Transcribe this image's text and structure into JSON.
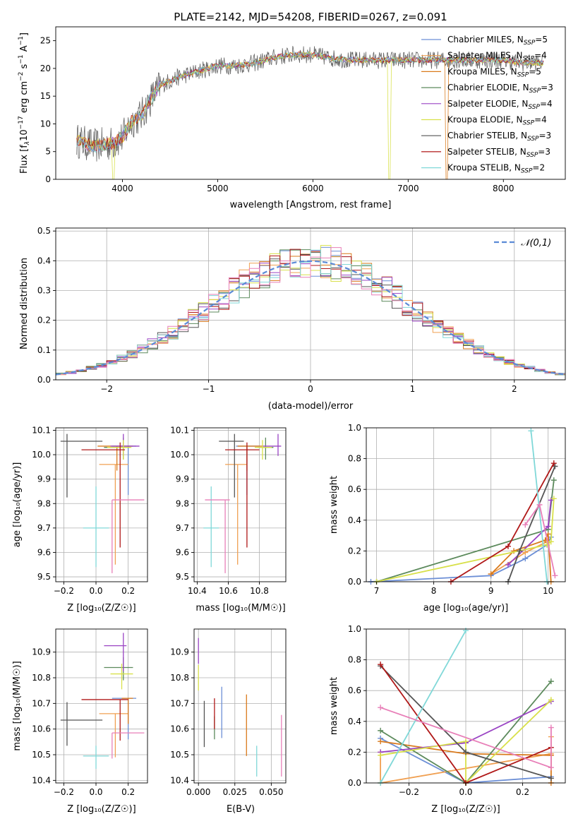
{
  "figure": {
    "title": "PLATE=2142, MJD=54208, FIBERID=0267, z=0.091"
  },
  "series": [
    {
      "key": "s0",
      "label": "Chabrier MILES, N",
      "sub": "SSP",
      "eq": "=5",
      "color": "#6c8fd6"
    },
    {
      "key": "s1",
      "label": "Salpeter MILES, N",
      "sub": "SSP",
      "eq": "=4",
      "color": "#f0a052"
    },
    {
      "key": "s2",
      "label": "Kroupa MILES, N",
      "sub": "SSP",
      "eq": "=5",
      "color": "#d97a1c"
    },
    {
      "key": "s3",
      "label": "Chabrier ELODIE, N",
      "sub": "SSP",
      "eq": "=3",
      "color": "#5c8a5c"
    },
    {
      "key": "s4",
      "label": "Salpeter ELODIE, N",
      "sub": "SSP",
      "eq": "=4",
      "color": "#9a44c4"
    },
    {
      "key": "s5",
      "label": "Kroupa ELODIE, N",
      "sub": "SSP",
      "eq": "=4",
      "color": "#d8e04a"
    },
    {
      "key": "s6",
      "label": "Chabrier STELIB, N",
      "sub": "SSP",
      "eq": "=3",
      "color": "#555555"
    },
    {
      "key": "s7",
      "label": "Salpeter STELIB, N",
      "sub": "SSP",
      "eq": "=3",
      "color": "#b01818"
    },
    {
      "key": "s8",
      "label": "Kroupa STELIB, N",
      "sub": "SSP",
      "eq": "=2",
      "color": "#80d8d8"
    },
    {
      "key": "s9",
      "label": "",
      "sub": "",
      "eq": "",
      "color": "#e87fb8"
    }
  ],
  "panels": {
    "spectrum": {
      "xlabel": "wavelength [Angstrom, rest frame]",
      "ylabel_pre": "Flux [f",
      "ylabel_post": " erg cm",
      "ylabel_end": " s",
      "ylabel_tail": " A",
      "xticks": [
        4000,
        5000,
        6000,
        7000,
        8000
      ],
      "yticks": [
        0,
        5,
        10,
        15,
        20,
        25
      ]
    },
    "residual": {
      "xlabel": "(data-model)/error",
      "ylabel": "Normed distribution",
      "legend": "𝒩(0,1)",
      "xticks": [
        -2,
        -1,
        0,
        1,
        2
      ],
      "yticks": [
        0.0,
        0.1,
        0.2,
        0.3,
        0.4,
        0.5
      ]
    },
    "age_z": {
      "xlabel": "Z [log₁₀(Z/Z☉)]",
      "ylabel": "age  [log₁₀(age/yr)]"
    },
    "age_mass": {
      "xlabel": "mass [log₁₀(M/M☉)]"
    },
    "w_age": {
      "xlabel": "age  [log₁₀(age/yr)]",
      "ylabel": "mass weight"
    },
    "mass_z": {
      "xlabel": "Z [log₁₀(Z/Z☉)]",
      "ylabel": "mass [log₁₀(M/M☉)]"
    },
    "mass_ebv": {
      "xlabel": "E(B-V)"
    },
    "w_z": {
      "xlabel": "Z [log₁₀(Z/Z☉)]",
      "ylabel": "mass weight"
    }
  },
  "chart_data": [
    {
      "type": "line",
      "id": "spectrum",
      "title": "PLATE=2142, MJD=54208, FIBERID=0267, z=0.091",
      "xlabel": "wavelength [Angstrom, rest frame]",
      "ylabel": "Flux [fλ10^-17 erg cm^-2 s^-1 A^-1]",
      "xlim": [
        3300,
        8650
      ],
      "ylim": [
        0,
        27.5
      ],
      "envelope_x": [
        3520,
        3700,
        3900,
        4000,
        4100,
        4200,
        4300,
        4400,
        4600,
        4800,
        5000,
        5200,
        5400,
        5600,
        5800,
        6000,
        6200,
        6400,
        6600,
        6800,
        7000,
        7200,
        7400,
        7600,
        7800,
        8000,
        8200,
        8400
      ],
      "envelope_y": [
        7.0,
        6.0,
        6.5,
        7.5,
        10.5,
        11.5,
        14.5,
        17.0,
        18.5,
        19.5,
        20.5,
        20.5,
        21.0,
        22.0,
        22.5,
        22.5,
        21.8,
        21.5,
        21.5,
        21.5,
        21.5,
        21.5,
        21.5,
        21.5,
        21.5,
        21.5,
        21.0,
        21.0
      ],
      "dropouts": [
        {
          "wavelength": 3900,
          "series": "Kroupa ELODIE"
        },
        {
          "wavelength": 6800,
          "series": "Kroupa ELODIE"
        },
        {
          "wavelength": 7400,
          "series": "Kroupa MILES"
        }
      ],
      "legend": "top-right"
    },
    {
      "type": "line",
      "id": "residual",
      "xlabel": "(data-model)/error",
      "ylabel": "Normed distribution",
      "xlim": [
        -2.5,
        2.5
      ],
      "ylim": [
        0,
        0.51
      ],
      "grid": true,
      "reference": "N(0,1)",
      "bin_width": 0.1,
      "peak": 0.47
    },
    {
      "type": "scatter",
      "id": "age_z",
      "xlabel": "Z [log10(Z/Zsun)]",
      "ylabel": "age [log10(age/yr)]",
      "xlim": [
        -0.25,
        0.32
      ],
      "ylim": [
        9.48,
        10.11
      ],
      "points": [
        {
          "series": "Chabrier MILES",
          "x": 0.2,
          "y": 10.035,
          "xerr": [
            0.1,
            0.05
          ],
          "yerr": [
            0.2,
            0.0
          ]
        },
        {
          "series": "Salpeter MILES",
          "x": 0.12,
          "y": 9.96,
          "xerr": [
            0.1,
            0.08
          ],
          "yerr": [
            0.41,
            0.0
          ]
        },
        {
          "series": "Kroupa MILES",
          "x": 0.13,
          "y": 10.035,
          "xerr": [
            0.12,
            0.1
          ],
          "yerr": [
            0.1,
            0.0
          ]
        },
        {
          "series": "Chabrier ELODIE",
          "x": 0.17,
          "y": 10.03,
          "xerr": [
            0.12,
            0.04
          ],
          "yerr": [
            0.05,
            0.04
          ]
        },
        {
          "series": "Salpeter ELODIE",
          "x": 0.17,
          "y": 10.035,
          "xerr": [
            0.08,
            0.1
          ],
          "yerr": [
            0.04,
            0.05
          ]
        },
        {
          "series": "Kroupa ELODIE",
          "x": 0.17,
          "y": 10.03,
          "xerr": [
            0.1,
            0.05
          ],
          "yerr": [
            0.05,
            0.03
          ]
        },
        {
          "series": "Chabrier STELIB",
          "x": -0.18,
          "y": 10.055,
          "xerr": [
            0.04,
            0.22
          ],
          "yerr": [
            0.23,
            0.03
          ]
        },
        {
          "series": "Salpeter STELIB",
          "x": 0.15,
          "y": 10.02,
          "xerr": [
            0.24,
            0.03
          ],
          "yerr": [
            0.4,
            0.03
          ]
        },
        {
          "series": "Kroupa STELIB",
          "x": 0.0,
          "y": 9.7,
          "xerr": [
            0.08,
            0.08
          ],
          "yerr": [
            0.16,
            0.17
          ]
        },
        {
          "series": "",
          "x": 0.1,
          "y": 9.815,
          "xerr": [
            0.0,
            0.2
          ],
          "yerr": [
            0.3,
            0.0
          ]
        }
      ]
    },
    {
      "type": "scatter",
      "id": "age_mass",
      "xlabel": "mass [log10(M/Msun)]",
      "ylim": [
        9.48,
        10.11
      ],
      "xlim": [
        10.38,
        10.97
      ],
      "points": [
        {
          "series": "Chabrier MILES",
          "x": 10.72,
          "y": 10.035,
          "xerr": [
            0.07,
            0.08
          ],
          "yerr": [
            0.2,
            0.0
          ]
        },
        {
          "series": "Salpeter MILES",
          "x": 10.66,
          "y": 9.96,
          "xerr": [
            0.08,
            0.06
          ],
          "yerr": [
            0.41,
            0.0
          ]
        },
        {
          "series": "Kroupa MILES",
          "x": 10.72,
          "y": 10.035,
          "xerr": [
            0.06,
            0.1
          ],
          "yerr": [
            0.1,
            0.0
          ]
        },
        {
          "series": "Chabrier ELODIE",
          "x": 10.84,
          "y": 10.03,
          "xerr": [
            0.05,
            0.05
          ],
          "yerr": [
            0.05,
            0.04
          ]
        },
        {
          "series": "Salpeter ELODIE",
          "x": 10.92,
          "y": 10.035,
          "xerr": [
            0.1,
            0.02
          ],
          "yerr": [
            0.04,
            0.05
          ]
        },
        {
          "series": "Kroupa ELODIE",
          "x": 10.82,
          "y": 10.03,
          "xerr": [
            0.05,
            0.06
          ],
          "yerr": [
            0.05,
            0.03
          ]
        },
        {
          "series": "Chabrier STELIB",
          "x": 10.64,
          "y": 10.055,
          "xerr": [
            0.1,
            0.06
          ],
          "yerr": [
            0.23,
            0.03
          ]
        },
        {
          "series": "Salpeter STELIB",
          "x": 10.72,
          "y": 10.02,
          "xerr": [
            0.14,
            0.08
          ],
          "yerr": [
            0.4,
            0.03
          ]
        },
        {
          "series": "Kroupa STELIB",
          "x": 10.49,
          "y": 9.7,
          "xerr": [
            0.05,
            0.05
          ],
          "yerr": [
            0.16,
            0.17
          ]
        },
        {
          "series": "",
          "x": 10.58,
          "y": 9.815,
          "xerr": [
            0.13,
            0.03
          ],
          "yerr": [
            0.3,
            0.0
          ]
        }
      ]
    },
    {
      "type": "line",
      "id": "w_age",
      "xlabel": "age [log10(age/yr)]",
      "ylabel": "mass weight",
      "xlim": [
        6.82,
        10.3
      ],
      "ylim": [
        0,
        1
      ],
      "grid": true,
      "series": [
        {
          "name": "Chabrier MILES",
          "x": [
            6.9,
            9.0,
            9.6,
            9.98,
            10.05
          ],
          "y": [
            0.0,
            0.04,
            0.15,
            0.24,
            0.29
          ]
        },
        {
          "name": "Salpeter MILES",
          "x": [
            9.0,
            9.6,
            9.98
          ],
          "y": [
            0.05,
            0.19,
            0.26
          ]
        },
        {
          "name": "Kroupa MILES",
          "x": [
            9.0,
            9.4,
            9.95,
            10.0,
            10.05
          ],
          "y": [
            0.05,
            0.2,
            0.27,
            0.31,
            0.0
          ]
        },
        {
          "name": "Chabrier ELODIE",
          "x": [
            7.0,
            10.0,
            10.1
          ],
          "y": [
            0.0,
            0.34,
            0.66
          ]
        },
        {
          "name": "Salpeter ELODIE",
          "x": [
            9.3,
            10.0,
            10.05
          ],
          "y": [
            0.11,
            0.36,
            0.53
          ]
        },
        {
          "name": "Kroupa ELODIE",
          "x": [
            7.0,
            9.98,
            10.05,
            10.1
          ],
          "y": [
            0.0,
            0.24,
            0.26,
            0.54
          ]
        },
        {
          "name": "Chabrier STELIB",
          "x": [
            9.3,
            9.5,
            10.12
          ],
          "y": [
            0.0,
            0.2,
            0.75
          ]
        },
        {
          "name": "Salpeter STELIB",
          "x": [
            8.3,
            9.3,
            10.1
          ],
          "y": [
            0.0,
            0.23,
            0.77
          ]
        },
        {
          "name": "Kroupa STELIB",
          "x": [
            9.7,
            9.98
          ],
          "y": [
            0.98,
            0.0
          ]
        },
        {
          "name": "",
          "x": [
            9.6,
            9.85,
            10.12
          ],
          "y": [
            0.37,
            0.5,
            0.04
          ]
        }
      ]
    },
    {
      "type": "scatter",
      "id": "mass_z",
      "xlabel": "Z [log10(Z/Zsun)]",
      "ylabel": "mass [log10(M/Msun)]",
      "xlim": [
        -0.25,
        0.32
      ],
      "ylim": [
        10.39,
        10.99
      ],
      "points": [
        {
          "series": "Chabrier MILES",
          "x": 0.2,
          "y": 10.72,
          "xerr": [
            0.1,
            0.05
          ],
          "yerr": [
            0.16,
            0.0
          ]
        },
        {
          "series": "Salpeter MILES",
          "x": 0.12,
          "y": 10.66,
          "xerr": [
            0.1,
            0.08
          ],
          "yerr": [
            0.17,
            0.0
          ]
        },
        {
          "series": "Kroupa MILES",
          "x": 0.2,
          "y": 10.72,
          "xerr": [
            0.04,
            0.03
          ],
          "yerr": [
            0.1,
            0.0
          ]
        },
        {
          "series": "Chabrier ELODIE",
          "x": 0.17,
          "y": 10.84,
          "xerr": [
            0.12,
            0.06
          ],
          "yerr": [
            0.05,
            0.04
          ]
        },
        {
          "series": "Salpeter ELODIE",
          "x": 0.17,
          "y": 10.925,
          "xerr": [
            0.12,
            0.02
          ],
          "yerr": [
            0.1,
            0.05
          ]
        },
        {
          "series": "Kroupa ELODIE",
          "x": 0.16,
          "y": 10.815,
          "xerr": [
            0.07,
            0.07
          ],
          "yerr": [
            0.06,
            0.04
          ]
        },
        {
          "series": "Chabrier STELIB",
          "x": -0.18,
          "y": 10.635,
          "xerr": [
            0.04,
            0.22
          ],
          "yerr": [
            0.1,
            0.07
          ]
        },
        {
          "series": "Salpeter STELIB",
          "x": 0.15,
          "y": 10.715,
          "xerr": [
            0.24,
            0.05
          ],
          "yerr": [
            0.16,
            0.0
          ]
        },
        {
          "series": "Kroupa STELIB",
          "x": 0.0,
          "y": 10.495,
          "xerr": [
            0.08,
            0.08
          ],
          "yerr": [
            0.05,
            0.04
          ]
        },
        {
          "series": "",
          "x": 0.1,
          "y": 10.585,
          "xerr": [
            0.0,
            0.2
          ],
          "yerr": [
            0.1,
            0.0
          ]
        }
      ]
    },
    {
      "type": "scatter",
      "id": "mass_ebv",
      "xlabel": "E(B-V)",
      "xlim": [
        -0.003,
        0.06
      ],
      "ylim": [
        10.39,
        10.99
      ],
      "points": [
        {
          "series": "Chabrier MILES",
          "x": 0.016,
          "y": 10.665,
          "yerr": [
            0.1,
            0.1
          ]
        },
        {
          "series": "Kroupa MILES",
          "x": 0.033,
          "y": 10.615,
          "yerr": [
            0.12,
            0.12
          ]
        },
        {
          "series": "Chabrier ELODIE",
          "x": 0.011,
          "y": 10.6,
          "yerr": [
            0.04,
            0.05
          ]
        },
        {
          "series": "Salpeter ELODIE",
          "x": 0.0,
          "y": 10.905,
          "yerr": [
            0.05,
            0.05
          ]
        },
        {
          "series": "Kroupa ELODIE",
          "x": 0.0,
          "y": 10.8,
          "yerr": [
            0.05,
            0.05
          ]
        },
        {
          "series": "Chabrier STELIB",
          "x": 0.004,
          "y": 10.62,
          "yerr": [
            0.09,
            0.09
          ]
        },
        {
          "series": "Salpeter STELIB",
          "x": 0.011,
          "y": 10.65,
          "yerr": [
            0.05,
            0.07
          ]
        },
        {
          "series": "Kroupa STELIB",
          "x": 0.04,
          "y": 10.475,
          "yerr": [
            0.06,
            0.06
          ]
        },
        {
          "series": "",
          "x": 0.057,
          "y": 10.535,
          "yerr": [
            0.12,
            0.12
          ]
        }
      ]
    },
    {
      "type": "line",
      "id": "w_z",
      "xlabel": "Z [log10(Z/Zsun)]",
      "ylabel": "mass weight",
      "xlim": [
        -0.35,
        0.35
      ],
      "ylim": [
        0,
        1
      ],
      "grid": true,
      "series": [
        {
          "name": "Chabrier MILES",
          "x": [
            -0.3,
            0.0,
            0.3
          ],
          "y": [
            0.29,
            0.0,
            0.04
          ]
        },
        {
          "name": "Salpeter MILES",
          "x": [
            -0.3,
            -0.3,
            0.3,
            0.3
          ],
          "y": [
            0.2,
            0.0,
            0.19,
            0.3
          ]
        },
        {
          "name": "Kroupa MILES",
          "x": [
            -0.3,
            0.0,
            0.3,
            0.3
          ],
          "y": [
            0.27,
            0.19,
            0.18,
            0.0
          ]
        },
        {
          "name": "Chabrier ELODIE",
          "x": [
            -0.3,
            0.0,
            0.3
          ],
          "y": [
            0.34,
            0.0,
            0.66
          ]
        },
        {
          "name": "Salpeter ELODIE",
          "x": [
            -0.3,
            0.0,
            0.3
          ],
          "y": [
            0.2,
            0.26,
            0.53
          ]
        },
        {
          "name": "Kroupa ELODIE",
          "x": [
            -0.3,
            0.0,
            0.0,
            0.3
          ],
          "y": [
            0.18,
            0.27,
            0.0,
            0.54
          ]
        },
        {
          "name": "Chabrier STELIB",
          "x": [
            -0.3,
            0.0,
            0.3
          ],
          "y": [
            0.76,
            0.2,
            0.03
          ]
        },
        {
          "name": "Salpeter STELIB",
          "x": [
            -0.3,
            0.0,
            0.3
          ],
          "y": [
            0.77,
            0.0,
            0.23
          ]
        },
        {
          "name": "Kroupa STELIB",
          "x": [
            -0.3,
            0.0
          ],
          "y": [
            0.0,
            0.99
          ]
        },
        {
          "name": "",
          "x": [
            -0.3,
            0.3,
            0.3
          ],
          "y": [
            0.49,
            0.1,
            0.36
          ]
        }
      ]
    }
  ]
}
